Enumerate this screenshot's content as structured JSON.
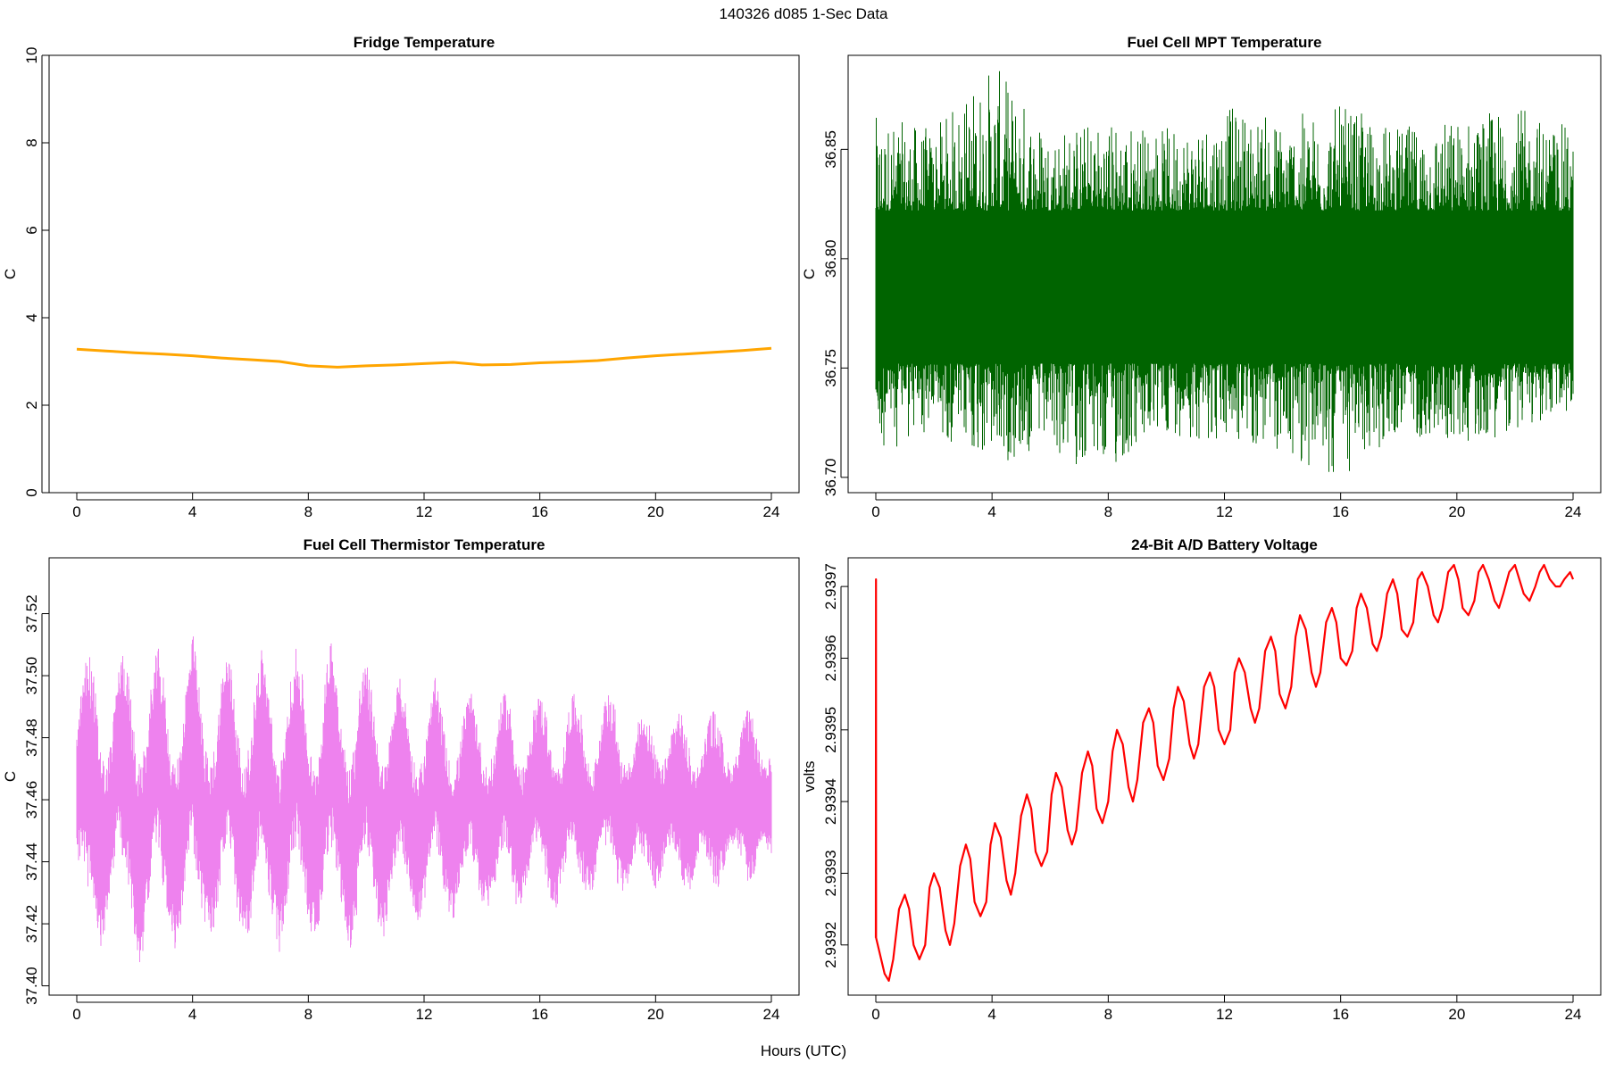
{
  "figure": {
    "title": "140326   d085   1-Sec Data",
    "xlabel": "Hours (UTC)"
  },
  "chart_data": [
    {
      "type": "line",
      "title": "Fridge Temperature",
      "xlabel": "",
      "ylabel": "C",
      "color": "#ffa500",
      "xlim": [
        0,
        24
      ],
      "ylim": [
        0,
        10
      ],
      "xticks": [
        0,
        4,
        8,
        12,
        16,
        20,
        24
      ],
      "xtick_labels": [
        "0",
        "4",
        "8",
        "12",
        "16",
        "20",
        "24"
      ],
      "yticks": [
        0,
        2,
        4,
        6,
        8,
        10
      ],
      "ytick_labels": [
        "0",
        "2",
        "4",
        "6",
        "8",
        "10"
      ],
      "series": [
        {
          "x": [
            0,
            1,
            2,
            3,
            4,
            5,
            6,
            7,
            8,
            9,
            10,
            11,
            12,
            13,
            14,
            15,
            16,
            17,
            18,
            19,
            20,
            21,
            22,
            23,
            24
          ],
          "y": [
            3.28,
            3.24,
            3.2,
            3.17,
            3.13,
            3.08,
            3.04,
            3.0,
            2.9,
            2.87,
            2.9,
            2.92,
            2.95,
            2.98,
            2.92,
            2.93,
            2.97,
            2.99,
            3.02,
            3.08,
            3.13,
            3.17,
            3.21,
            3.25,
            3.3
          ]
        }
      ]
    },
    {
      "type": "line",
      "title": "Fuel Cell MPT Temperature",
      "xlabel": "",
      "ylabel": "C",
      "color": "#006400",
      "xlim": [
        0,
        24
      ],
      "ylim": [
        36.693,
        36.893
      ],
      "xticks": [
        0,
        4,
        8,
        12,
        16,
        20,
        24
      ],
      "xtick_labels": [
        "0",
        "4",
        "8",
        "12",
        "16",
        "20",
        "24"
      ],
      "yticks": [
        36.7,
        36.75,
        36.8,
        36.85
      ],
      "ytick_labels": [
        "36.70",
        "36.75",
        "36.80",
        "36.85"
      ],
      "series": [
        {
          "x": [
            0,
            2,
            4,
            6,
            8,
            10,
            12,
            14,
            16,
            18,
            20,
            22,
            24
          ],
          "y_min": [
            36.71,
            36.72,
            36.705,
            36.71,
            36.7,
            36.72,
            36.715,
            36.71,
            36.697,
            36.72,
            36.715,
            36.72,
            36.73
          ],
          "y_max": [
            36.865,
            36.86,
            36.89,
            36.86,
            36.865,
            36.86,
            36.87,
            36.865,
            36.87,
            36.86,
            36.865,
            36.87,
            36.86
          ],
          "band_low": 36.752,
          "band_high": 36.822
        }
      ]
    },
    {
      "type": "line",
      "title": "Fuel Cell Thermistor Temperature",
      "xlabel": "",
      "ylabel": "C",
      "color": "#ee82ee",
      "xlim": [
        0,
        24
      ],
      "ylim": [
        37.397,
        37.538
      ],
      "xticks": [
        0,
        4,
        8,
        12,
        16,
        20,
        24
      ],
      "xtick_labels": [
        "0",
        "4",
        "8",
        "12",
        "16",
        "20",
        "24"
      ],
      "yticks": [
        37.4,
        37.42,
        37.44,
        37.46,
        37.48,
        37.5,
        37.52
      ],
      "ytick_labels": [
        "37.40",
        "37.42",
        "37.44",
        "37.46",
        "37.48",
        "37.50",
        "37.52"
      ],
      "series": [
        {
          "x": [
            0,
            0.2,
            0.4,
            0.6,
            0.8,
            1.0,
            1.2,
            1.4,
            1.6,
            1.8,
            2.0,
            2.2,
            2.4,
            2.6,
            2.8,
            3.0,
            3.2,
            3.4,
            3.6,
            3.8,
            4.0,
            4.2,
            4.4,
            4.6,
            4.8,
            5.0,
            5.2,
            5.4,
            5.6,
            5.8,
            6.0,
            6.2,
            6.4,
            6.6,
            6.8,
            7.0,
            7.2,
            7.4,
            7.6,
            7.8,
            8.0,
            8.2,
            8.4,
            8.6,
            8.8,
            9.0,
            9.2,
            9.4,
            9.6,
            9.8,
            10.0,
            10.2,
            10.4,
            10.6,
            10.8,
            11.0,
            11.2,
            11.4,
            11.6,
            11.8,
            12.0,
            12.2,
            12.4,
            12.6,
            12.8,
            13.0,
            13.2,
            13.4,
            13.6,
            13.8,
            14.0,
            14.2,
            14.4,
            14.6,
            14.8,
            15.0,
            15.2,
            15.4,
            15.6,
            15.8,
            16.0,
            16.2,
            16.4,
            16.6,
            16.8,
            17.0,
            17.2,
            17.4,
            17.6,
            17.8,
            18.0,
            18.2,
            18.4,
            18.6,
            18.8,
            19.0,
            19.2,
            19.4,
            19.6,
            19.8,
            20.0,
            20.2,
            20.4,
            20.6,
            20.8,
            21.0,
            21.2,
            21.4,
            21.6,
            21.8,
            22.0,
            22.2,
            22.4,
            22.6,
            22.8,
            23.0,
            23.2,
            23.4,
            23.6,
            23.8,
            24.0
          ],
          "y_min": [
            37.44,
            37.44,
            37.43,
            37.42,
            37.41,
            37.42,
            37.43,
            37.45,
            37.44,
            37.43,
            37.415,
            37.405,
            37.42,
            37.44,
            37.445,
            37.43,
            37.42,
            37.41,
            37.42,
            37.44,
            37.445,
            37.43,
            37.42,
            37.415,
            37.42,
            37.435,
            37.445,
            37.435,
            37.42,
            37.41,
            37.42,
            37.44,
            37.445,
            37.43,
            37.42,
            37.41,
            37.42,
            37.44,
            37.445,
            37.435,
            37.42,
            37.415,
            37.42,
            37.44,
            37.445,
            37.435,
            37.42,
            37.41,
            37.415,
            37.435,
            37.445,
            37.435,
            37.42,
            37.415,
            37.425,
            37.44,
            37.445,
            37.435,
            37.425,
            37.42,
            37.425,
            37.44,
            37.445,
            37.435,
            37.425,
            37.42,
            37.43,
            37.44,
            37.445,
            37.435,
            37.425,
            37.425,
            37.43,
            37.44,
            37.445,
            37.435,
            37.425,
            37.425,
            37.435,
            37.445,
            37.445,
            37.435,
            37.425,
            37.425,
            37.435,
            37.445,
            37.445,
            37.435,
            37.43,
            37.43,
            37.44,
            37.445,
            37.445,
            37.435,
            37.43,
            37.43,
            37.44,
            37.445,
            37.44,
            37.435,
            37.43,
            37.435,
            37.445,
            37.445,
            37.44,
            37.43,
            37.43,
            37.44,
            37.445,
            37.44,
            37.43,
            37.43,
            37.44,
            37.445,
            37.445,
            37.44,
            37.43,
            37.435,
            37.445,
            37.445,
            37.44
          ],
          "y_max": [
            37.48,
            37.5,
            37.51,
            37.5,
            37.48,
            37.47,
            37.48,
            37.5,
            37.51,
            37.5,
            37.48,
            37.47,
            37.48,
            37.5,
            37.51,
            37.5,
            37.48,
            37.47,
            37.48,
            37.5,
            37.515,
            37.5,
            37.48,
            37.47,
            37.48,
            37.5,
            37.51,
            37.5,
            37.48,
            37.47,
            37.48,
            37.5,
            37.51,
            37.5,
            37.48,
            37.47,
            37.48,
            37.5,
            37.51,
            37.5,
            37.48,
            37.47,
            37.48,
            37.5,
            37.515,
            37.5,
            37.48,
            37.47,
            37.48,
            37.5,
            37.505,
            37.495,
            37.48,
            37.47,
            37.48,
            37.495,
            37.5,
            37.49,
            37.475,
            37.47,
            37.475,
            37.49,
            37.5,
            37.49,
            37.475,
            37.47,
            37.475,
            37.49,
            37.495,
            37.49,
            37.475,
            37.47,
            37.475,
            37.49,
            37.495,
            37.49,
            37.475,
            37.47,
            37.475,
            37.49,
            37.495,
            37.49,
            37.475,
            37.47,
            37.475,
            37.49,
            37.495,
            37.49,
            37.475,
            37.47,
            37.475,
            37.49,
            37.495,
            37.49,
            37.475,
            37.47,
            37.475,
            37.485,
            37.49,
            37.485,
            37.475,
            37.47,
            37.475,
            37.485,
            37.49,
            37.485,
            37.475,
            37.47,
            37.475,
            37.485,
            37.49,
            37.485,
            37.475,
            37.47,
            37.475,
            37.485,
            37.49,
            37.485,
            37.475,
            37.47,
            37.475
          ]
        }
      ]
    },
    {
      "type": "line",
      "title": "24-Bit A/D Battery Voltage",
      "xlabel": "",
      "ylabel": "volts",
      "color": "#ff0000",
      "xlim": [
        0,
        24
      ],
      "ylim": [
        2.93913,
        2.93974
      ],
      "xticks": [
        0,
        4,
        8,
        12,
        16,
        20,
        24
      ],
      "xtick_labels": [
        "0",
        "4",
        "8",
        "12",
        "16",
        "20",
        "24"
      ],
      "yticks": [
        2.9392,
        2.9393,
        2.9394,
        2.9395,
        2.9396,
        2.9397
      ],
      "ytick_labels": [
        "2.9392",
        "2.9393",
        "2.9394",
        "2.9395",
        "2.9396",
        "2.9397"
      ],
      "series": [
        {
          "x": [
            0.0,
            0.005,
            0.01,
            0.3,
            0.45,
            0.6,
            0.8,
            1.0,
            1.15,
            1.3,
            1.5,
            1.7,
            1.85,
            2.0,
            2.2,
            2.4,
            2.55,
            2.7,
            2.9,
            3.1,
            3.25,
            3.4,
            3.6,
            3.8,
            3.95,
            4.1,
            4.3,
            4.5,
            4.65,
            4.8,
            5.0,
            5.2,
            5.35,
            5.5,
            5.7,
            5.9,
            6.05,
            6.2,
            6.4,
            6.6,
            6.75,
            6.9,
            7.1,
            7.3,
            7.45,
            7.6,
            7.8,
            8.0,
            8.15,
            8.3,
            8.5,
            8.7,
            8.85,
            9.0,
            9.2,
            9.4,
            9.55,
            9.7,
            9.9,
            10.1,
            10.25,
            10.4,
            10.6,
            10.8,
            10.95,
            11.1,
            11.3,
            11.5,
            11.65,
            11.8,
            12.0,
            12.2,
            12.35,
            12.5,
            12.7,
            12.9,
            13.05,
            13.2,
            13.4,
            13.6,
            13.75,
            13.9,
            14.1,
            14.3,
            14.45,
            14.6,
            14.8,
            15.0,
            15.15,
            15.3,
            15.5,
            15.7,
            15.85,
            16.0,
            16.2,
            16.4,
            16.55,
            16.7,
            16.9,
            17.1,
            17.25,
            17.4,
            17.6,
            17.8,
            17.95,
            18.1,
            18.3,
            18.5,
            18.65,
            18.8,
            19.0,
            19.2,
            19.35,
            19.5,
            19.7,
            19.9,
            20.05,
            20.2,
            20.4,
            20.6,
            20.75,
            20.9,
            21.1,
            21.3,
            21.45,
            21.6,
            21.8,
            22.0,
            22.15,
            22.3,
            22.5,
            22.7,
            22.85,
            23.0,
            23.2,
            23.4,
            23.55,
            23.7,
            23.9,
            24.0
          ],
          "y": [
            2.93921,
            2.93971,
            2.93921,
            2.93916,
            2.93915,
            2.93918,
            2.93925,
            2.93927,
            2.93925,
            2.9392,
            2.93918,
            2.9392,
            2.93928,
            2.9393,
            2.93928,
            2.93922,
            2.9392,
            2.93923,
            2.93931,
            2.93934,
            2.93932,
            2.93926,
            2.93924,
            2.93926,
            2.93934,
            2.93937,
            2.93935,
            2.93929,
            2.93927,
            2.9393,
            2.93938,
            2.93941,
            2.93939,
            2.93933,
            2.93931,
            2.93933,
            2.93941,
            2.93944,
            2.93942,
            2.93936,
            2.93934,
            2.93936,
            2.93944,
            2.93947,
            2.93945,
            2.93939,
            2.93937,
            2.9394,
            2.93947,
            2.9395,
            2.93948,
            2.93942,
            2.9394,
            2.93943,
            2.93951,
            2.93953,
            2.93951,
            2.93945,
            2.93943,
            2.93946,
            2.93953,
            2.93956,
            2.93954,
            2.93948,
            2.93946,
            2.93948,
            2.93956,
            2.93958,
            2.93956,
            2.9395,
            2.93948,
            2.9395,
            2.93958,
            2.9396,
            2.93958,
            2.93953,
            2.93951,
            2.93953,
            2.93961,
            2.93963,
            2.93961,
            2.93955,
            2.93953,
            2.93956,
            2.93963,
            2.93966,
            2.93964,
            2.93958,
            2.93956,
            2.93958,
            2.93965,
            2.93967,
            2.93965,
            2.9396,
            2.93959,
            2.93961,
            2.93967,
            2.93969,
            2.93967,
            2.93962,
            2.93961,
            2.93963,
            2.93969,
            2.93971,
            2.93969,
            2.93964,
            2.93963,
            2.93965,
            2.93971,
            2.93972,
            2.9397,
            2.93966,
            2.93965,
            2.93967,
            2.93972,
            2.93973,
            2.93971,
            2.93967,
            2.93966,
            2.93968,
            2.93972,
            2.93973,
            2.93971,
            2.93968,
            2.93967,
            2.93969,
            2.93972,
            2.93973,
            2.93971,
            2.93969,
            2.93968,
            2.9397,
            2.93972,
            2.93973,
            2.93971,
            2.9397,
            2.9397,
            2.93971,
            2.93972,
            2.93971
          ]
        }
      ]
    }
  ]
}
